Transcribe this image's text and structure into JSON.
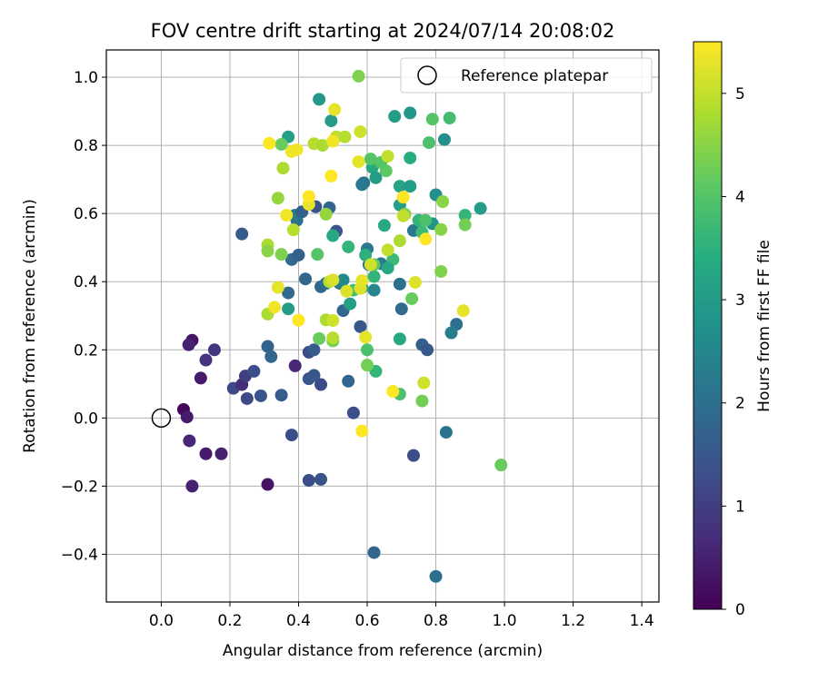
{
  "chart_data": {
    "type": "scatter",
    "title": "FOV centre drift starting at 2024/07/14 20:08:02",
    "xlabel": "Angular distance from reference (arcmin)",
    "ylabel": "Rotation from reference (arcmin)",
    "xlim": [
      -0.16,
      1.45
    ],
    "ylim": [
      -0.54,
      1.08
    ],
    "xticks": [
      "0.0",
      "0.2",
      "0.4",
      "0.6",
      "0.8",
      "1.0",
      "1.2",
      "1.4"
    ],
    "yticks": [
      "−0.4",
      "−0.2",
      "0.0",
      "0.2",
      "0.4",
      "0.6",
      "0.8",
      "1.0"
    ],
    "grid": true,
    "legend": {
      "placement": "top-right",
      "label": "Reference platepar"
    },
    "colorbar": {
      "label": "Hours from first FF file",
      "colormap": "viridis",
      "range": [
        0,
        5.5
      ],
      "ticks": [
        "0",
        "1",
        "2",
        "3",
        "4",
        "5"
      ]
    },
    "reference_point": {
      "x": 0.0,
      "y": 0.0
    },
    "points": [
      {
        "x": 0.065,
        "y": 0.025,
        "h": 0.1
      },
      {
        "x": 0.09,
        "y": 0.228,
        "h": 0.3
      },
      {
        "x": 0.08,
        "y": 0.215,
        "h": 0.5
      },
      {
        "x": 0.075,
        "y": 0.003,
        "h": 0.4
      },
      {
        "x": 0.082,
        "y": -0.067,
        "h": 0.6
      },
      {
        "x": 0.09,
        "y": -0.2,
        "h": 0.5
      },
      {
        "x": 0.115,
        "y": 0.117,
        "h": 0.4
      },
      {
        "x": 0.13,
        "y": 0.17,
        "h": 0.8
      },
      {
        "x": 0.155,
        "y": 0.2,
        "h": 0.9
      },
      {
        "x": 0.13,
        "y": -0.105,
        "h": 0.4
      },
      {
        "x": 0.175,
        "y": -0.105,
        "h": 0.5
      },
      {
        "x": 0.31,
        "y": -0.195,
        "h": 0.3
      },
      {
        "x": 0.21,
        "y": 0.087,
        "h": 1.2
      },
      {
        "x": 0.235,
        "y": 0.098,
        "h": 0.7
      },
      {
        "x": 0.245,
        "y": 0.123,
        "h": 1.0
      },
      {
        "x": 0.25,
        "y": 0.057,
        "h": 1.2
      },
      {
        "x": 0.27,
        "y": 0.137,
        "h": 1.3
      },
      {
        "x": 0.29,
        "y": 0.065,
        "h": 1.4
      },
      {
        "x": 0.31,
        "y": 0.21,
        "h": 1.7
      },
      {
        "x": 0.32,
        "y": 0.18,
        "h": 1.8
      },
      {
        "x": 0.35,
        "y": 0.067,
        "h": 1.6
      },
      {
        "x": 0.39,
        "y": 0.153,
        "h": 0.6
      },
      {
        "x": 0.38,
        "y": -0.05,
        "h": 1.3
      },
      {
        "x": 0.43,
        "y": -0.183,
        "h": 1.3
      },
      {
        "x": 0.465,
        "y": -0.18,
        "h": 1.4
      },
      {
        "x": 0.43,
        "y": 0.193,
        "h": 1.3
      },
      {
        "x": 0.445,
        "y": 0.2,
        "h": 1.6
      },
      {
        "x": 0.43,
        "y": 0.115,
        "h": 1.5
      },
      {
        "x": 0.445,
        "y": 0.125,
        "h": 1.5
      },
      {
        "x": 0.465,
        "y": 0.098,
        "h": 1.2
      },
      {
        "x": 0.545,
        "y": 0.108,
        "h": 1.8
      },
      {
        "x": 0.56,
        "y": 0.015,
        "h": 1.3
      },
      {
        "x": 0.62,
        "y": -0.395,
        "h": 1.8
      },
      {
        "x": 0.735,
        "y": -0.11,
        "h": 1.3
      },
      {
        "x": 0.8,
        "y": -0.465,
        "h": 2.0
      },
      {
        "x": 0.83,
        "y": -0.042,
        "h": 2.1
      },
      {
        "x": 0.235,
        "y": 0.54,
        "h": 1.6
      },
      {
        "x": 0.37,
        "y": 0.367,
        "h": 1.9
      },
      {
        "x": 0.38,
        "y": 0.465,
        "h": 1.9
      },
      {
        "x": 0.4,
        "y": 0.478,
        "h": 1.7
      },
      {
        "x": 0.42,
        "y": 0.408,
        "h": 1.8
      },
      {
        "x": 0.395,
        "y": 0.58,
        "h": 2.0
      },
      {
        "x": 0.39,
        "y": 0.595,
        "h": 2.2
      },
      {
        "x": 0.41,
        "y": 0.605,
        "h": 1.7
      },
      {
        "x": 0.45,
        "y": 0.62,
        "h": 1.4
      },
      {
        "x": 0.465,
        "y": 0.385,
        "h": 1.8
      },
      {
        "x": 0.48,
        "y": 0.395,
        "h": 2.0
      },
      {
        "x": 0.49,
        "y": 0.617,
        "h": 1.8
      },
      {
        "x": 0.51,
        "y": 0.548,
        "h": 1.4
      },
      {
        "x": 0.52,
        "y": 0.395,
        "h": 2.3
      },
      {
        "x": 0.53,
        "y": 0.405,
        "h": 2.6
      },
      {
        "x": 0.53,
        "y": 0.315,
        "h": 1.8
      },
      {
        "x": 0.58,
        "y": 0.268,
        "h": 1.5
      },
      {
        "x": 0.59,
        "y": 0.69,
        "h": 2.1
      },
      {
        "x": 0.6,
        "y": 0.496,
        "h": 2.2
      },
      {
        "x": 0.605,
        "y": 0.45,
        "h": 1.9
      },
      {
        "x": 0.62,
        "y": 0.375,
        "h": 2.5
      },
      {
        "x": 0.64,
        "y": 0.453,
        "h": 2.2
      },
      {
        "x": 0.695,
        "y": 0.393,
        "h": 2.0
      },
      {
        "x": 0.7,
        "y": 0.32,
        "h": 1.9
      },
      {
        "x": 0.76,
        "y": 0.215,
        "h": 1.7
      },
      {
        "x": 0.775,
        "y": 0.2,
        "h": 1.5
      },
      {
        "x": 0.86,
        "y": 0.275,
        "h": 2.0
      },
      {
        "x": 0.845,
        "y": 0.25,
        "h": 2.3
      },
      {
        "x": 0.735,
        "y": 0.55,
        "h": 2.2
      },
      {
        "x": 0.79,
        "y": 0.57,
        "h": 2.8
      },
      {
        "x": 0.8,
        "y": 0.655,
        "h": 2.7
      },
      {
        "x": 0.93,
        "y": 0.615,
        "h": 3.0
      },
      {
        "x": 0.825,
        "y": 0.817,
        "h": 2.7
      },
      {
        "x": 0.725,
        "y": 0.895,
        "h": 2.9
      },
      {
        "x": 0.68,
        "y": 0.885,
        "h": 3.0
      },
      {
        "x": 0.46,
        "y": 0.935,
        "h": 2.9
      },
      {
        "x": 0.37,
        "y": 0.825,
        "h": 3.1
      },
      {
        "x": 0.495,
        "y": 0.872,
        "h": 3.0
      },
      {
        "x": 0.585,
        "y": 0.685,
        "h": 2.2
      },
      {
        "x": 0.585,
        "y": 0.383,
        "h": 3.2
      },
      {
        "x": 0.5,
        "y": 0.535,
        "h": 3.3
      },
      {
        "x": 0.55,
        "y": 0.335,
        "h": 3.1
      },
      {
        "x": 0.37,
        "y": 0.32,
        "h": 3.0
      },
      {
        "x": 0.615,
        "y": 0.735,
        "h": 3.3
      },
      {
        "x": 0.625,
        "y": 0.705,
        "h": 3.0
      },
      {
        "x": 0.695,
        "y": 0.68,
        "h": 3.2
      },
      {
        "x": 0.695,
        "y": 0.625,
        "h": 3.1
      },
      {
        "x": 0.725,
        "y": 0.763,
        "h": 3.4
      },
      {
        "x": 0.725,
        "y": 0.68,
        "h": 3.0
      },
      {
        "x": 0.65,
        "y": 0.565,
        "h": 3.3
      },
      {
        "x": 0.595,
        "y": 0.478,
        "h": 3.5
      },
      {
        "x": 0.675,
        "y": 0.465,
        "h": 3.7
      },
      {
        "x": 0.66,
        "y": 0.44,
        "h": 3.3
      },
      {
        "x": 0.62,
        "y": 0.415,
        "h": 3.6
      },
      {
        "x": 0.545,
        "y": 0.502,
        "h": 3.6
      },
      {
        "x": 0.56,
        "y": 0.375,
        "h": 3.8
      },
      {
        "x": 0.6,
        "y": 0.2,
        "h": 3.9
      },
      {
        "x": 0.625,
        "y": 0.137,
        "h": 3.6
      },
      {
        "x": 0.695,
        "y": 0.232,
        "h": 3.3
      },
      {
        "x": 0.695,
        "y": 0.07,
        "h": 3.9
      },
      {
        "x": 0.75,
        "y": 0.58,
        "h": 3.6
      },
      {
        "x": 0.76,
        "y": 0.545,
        "h": 3.7
      },
      {
        "x": 0.77,
        "y": 0.58,
        "h": 3.9
      },
      {
        "x": 0.78,
        "y": 0.808,
        "h": 3.9
      },
      {
        "x": 0.79,
        "y": 0.877,
        "h": 4.0
      },
      {
        "x": 0.84,
        "y": 0.88,
        "h": 3.8
      },
      {
        "x": 0.885,
        "y": 0.595,
        "h": 3.6
      },
      {
        "x": 0.885,
        "y": 0.567,
        "h": 4.3
      },
      {
        "x": 0.815,
        "y": 0.553,
        "h": 4.5
      },
      {
        "x": 0.455,
        "y": 0.48,
        "h": 4.0
      },
      {
        "x": 0.46,
        "y": 0.233,
        "h": 4.2
      },
      {
        "x": 0.5,
        "y": 0.226,
        "h": 4.3
      },
      {
        "x": 0.62,
        "y": 0.45,
        "h": 4.1
      },
      {
        "x": 0.61,
        "y": 0.76,
        "h": 4.0
      },
      {
        "x": 0.655,
        "y": 0.725,
        "h": 4.1
      },
      {
        "x": 0.64,
        "y": 0.75,
        "h": 4.0
      },
      {
        "x": 0.71,
        "y": 0.598,
        "h": 4.4
      },
      {
        "x": 0.73,
        "y": 0.35,
        "h": 4.2
      },
      {
        "x": 0.76,
        "y": 0.05,
        "h": 4.3
      },
      {
        "x": 0.815,
        "y": 0.43,
        "h": 4.4
      },
      {
        "x": 0.82,
        "y": 0.635,
        "h": 4.5
      },
      {
        "x": 0.6,
        "y": 0.155,
        "h": 4.3
      },
      {
        "x": 0.99,
        "y": -0.138,
        "h": 4.2
      },
      {
        "x": 0.575,
        "y": 1.003,
        "h": 4.4
      },
      {
        "x": 0.35,
        "y": 0.803,
        "h": 4.2
      },
      {
        "x": 0.35,
        "y": 0.48,
        "h": 4.4
      },
      {
        "x": 0.48,
        "y": 0.598,
        "h": 4.6
      },
      {
        "x": 0.48,
        "y": 0.288,
        "h": 4.8
      },
      {
        "x": 0.31,
        "y": 0.508,
        "h": 4.8
      },
      {
        "x": 0.31,
        "y": 0.49,
        "h": 4.5
      },
      {
        "x": 0.31,
        "y": 0.305,
        "h": 4.8
      },
      {
        "x": 0.34,
        "y": 0.645,
        "h": 4.6
      },
      {
        "x": 0.355,
        "y": 0.733,
        "h": 4.8
      },
      {
        "x": 0.385,
        "y": 0.552,
        "h": 4.9
      },
      {
        "x": 0.445,
        "y": 0.805,
        "h": 4.9
      },
      {
        "x": 0.47,
        "y": 0.8,
        "h": 4.8
      },
      {
        "x": 0.51,
        "y": 0.825,
        "h": 5.0
      },
      {
        "x": 0.535,
        "y": 0.825,
        "h": 4.9
      },
      {
        "x": 0.58,
        "y": 0.84,
        "h": 5.1
      },
      {
        "x": 0.66,
        "y": 0.768,
        "h": 5.0
      },
      {
        "x": 0.695,
        "y": 0.52,
        "h": 4.8
      },
      {
        "x": 0.705,
        "y": 0.593,
        "h": 5.0
      },
      {
        "x": 0.66,
        "y": 0.493,
        "h": 5.0
      },
      {
        "x": 0.74,
        "y": 0.398,
        "h": 5.2
      },
      {
        "x": 0.765,
        "y": 0.103,
        "h": 5.1
      },
      {
        "x": 0.61,
        "y": 0.45,
        "h": 5.1
      },
      {
        "x": 0.49,
        "y": 0.4,
        "h": 4.9
      },
      {
        "x": 0.54,
        "y": 0.372,
        "h": 5.2
      },
      {
        "x": 0.5,
        "y": 0.235,
        "h": 4.9
      },
      {
        "x": 0.5,
        "y": 0.286,
        "h": 5.1
      },
      {
        "x": 0.5,
        "y": 0.405,
        "h": 5.2
      },
      {
        "x": 0.595,
        "y": 0.237,
        "h": 5.3
      },
      {
        "x": 0.58,
        "y": 0.38,
        "h": 5.2
      },
      {
        "x": 0.585,
        "y": 0.403,
        "h": 5.3
      },
      {
        "x": 0.34,
        "y": 0.383,
        "h": 5.3
      },
      {
        "x": 0.43,
        "y": 0.627,
        "h": 5.3
      },
      {
        "x": 0.38,
        "y": 0.782,
        "h": 5.4
      },
      {
        "x": 0.395,
        "y": 0.787,
        "h": 5.4
      },
      {
        "x": 0.315,
        "y": 0.806,
        "h": 5.5
      },
      {
        "x": 0.33,
        "y": 0.325,
        "h": 5.4
      },
      {
        "x": 0.365,
        "y": 0.595,
        "h": 5.4
      },
      {
        "x": 0.4,
        "y": 0.287,
        "h": 5.5
      },
      {
        "x": 0.43,
        "y": 0.65,
        "h": 5.5
      },
      {
        "x": 0.495,
        "y": 0.71,
        "h": 5.5
      },
      {
        "x": 0.5,
        "y": 0.812,
        "h": 5.4
      },
      {
        "x": 0.505,
        "y": 0.905,
        "h": 5.3
      },
      {
        "x": 0.575,
        "y": 0.752,
        "h": 5.3
      },
      {
        "x": 0.585,
        "y": -0.038,
        "h": 5.5
      },
      {
        "x": 0.675,
        "y": 0.078,
        "h": 5.5
      },
      {
        "x": 0.705,
        "y": 0.648,
        "h": 5.5
      },
      {
        "x": 0.77,
        "y": 0.525,
        "h": 5.5
      },
      {
        "x": 0.88,
        "y": 0.315,
        "h": 5.3
      }
    ]
  }
}
